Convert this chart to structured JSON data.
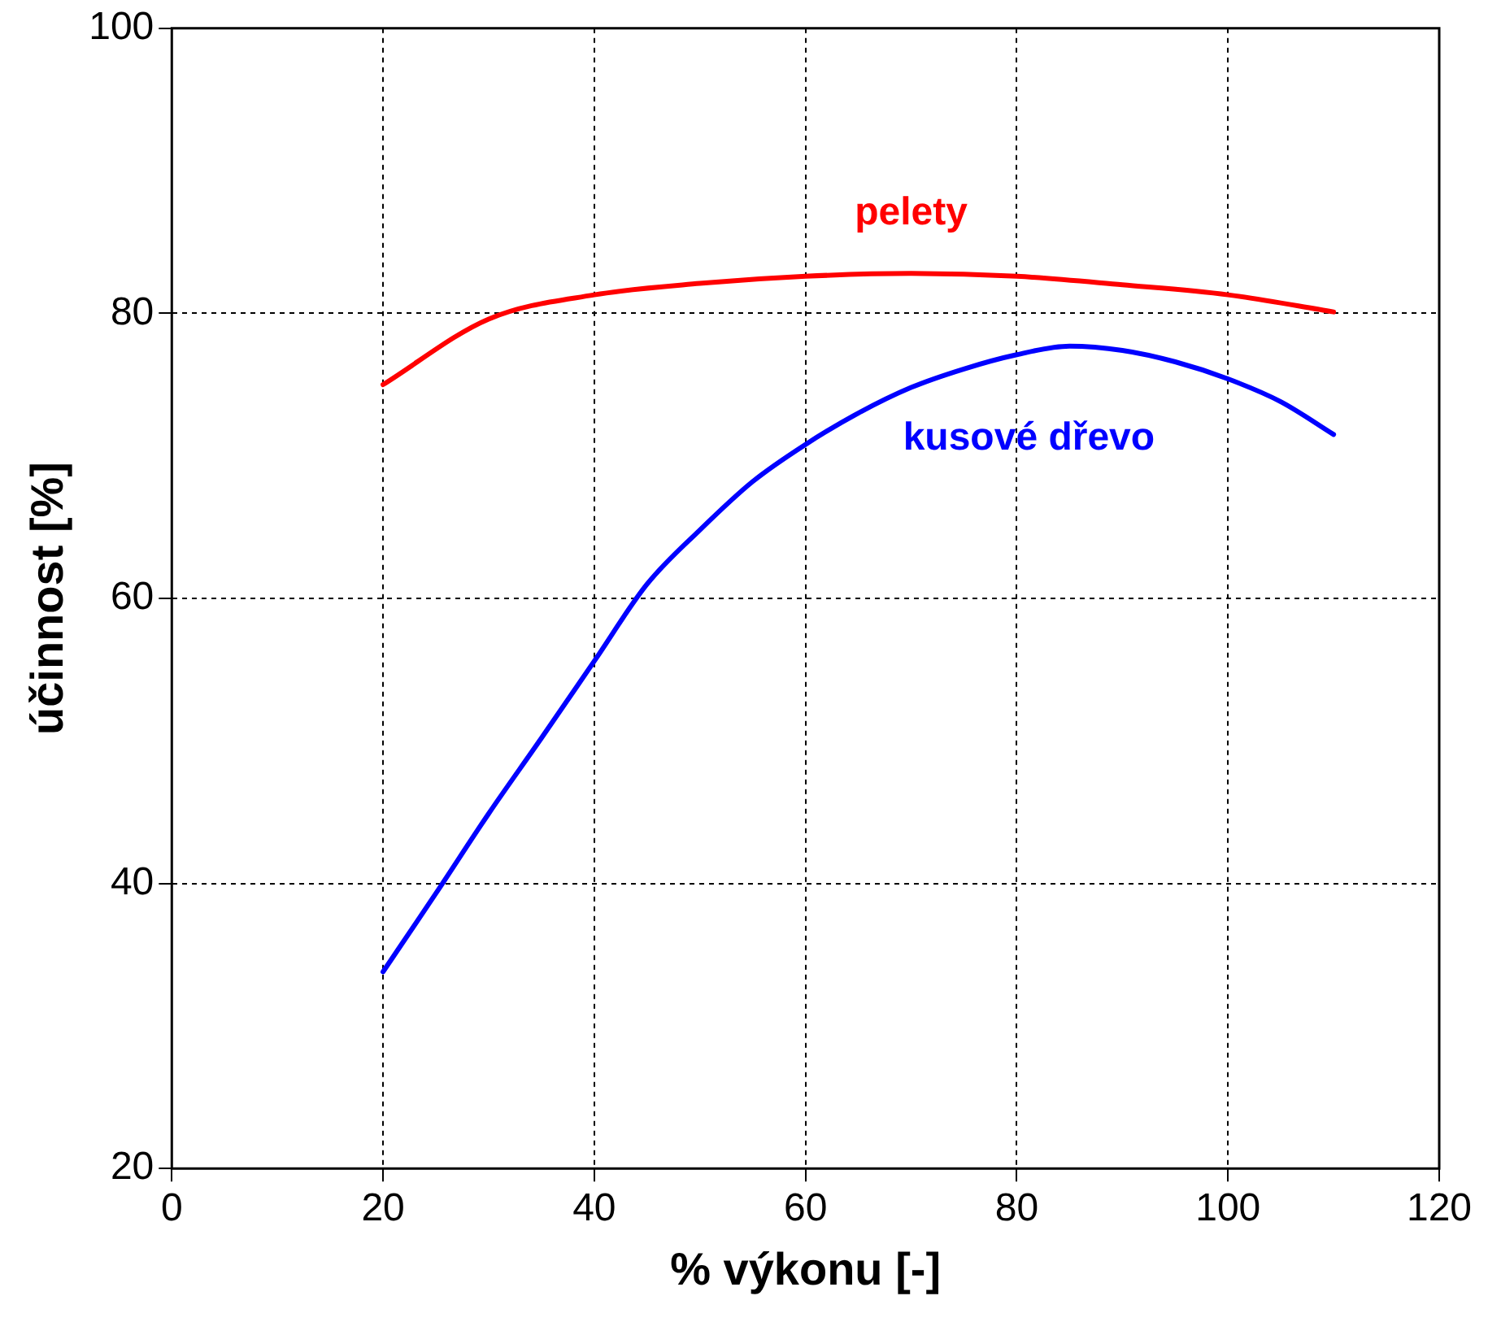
{
  "chart_data": {
    "type": "line",
    "xlabel": "% výkonu [-]",
    "ylabel": "účinnost [%]",
    "xlim": [
      0,
      120
    ],
    "xticks": [
      0,
      20,
      40,
      60,
      80,
      100,
      120
    ],
    "ylim": [
      20,
      100
    ],
    "yticks": [
      20,
      40,
      60,
      80,
      100
    ],
    "grid": true,
    "legend": false,
    "marker": "none",
    "line_style": "solid",
    "series": [
      {
        "name": "pelety",
        "color": "#ff0000",
        "x": [
          20,
          30,
          40,
          50,
          60,
          70,
          80,
          90,
          100,
          110
        ],
        "values": [
          75.0,
          79.6,
          81.3,
          82.1,
          82.6,
          82.8,
          82.6,
          82.0,
          81.3,
          80.1
        ]
      },
      {
        "name": "kusové dřevo",
        "color": "#0000ff",
        "x": [
          20,
          25,
          30,
          35,
          40,
          45,
          50,
          55,
          60,
          65,
          70,
          75,
          80,
          85,
          90,
          95,
          100,
          105,
          110
        ],
        "values": [
          33.8,
          39.3,
          44.9,
          50.2,
          55.6,
          61.0,
          64.8,
          68.2,
          70.8,
          73.0,
          74.8,
          76.1,
          77.1,
          77.7,
          77.4,
          76.6,
          75.4,
          73.8,
          71.5
        ]
      }
    ]
  }
}
